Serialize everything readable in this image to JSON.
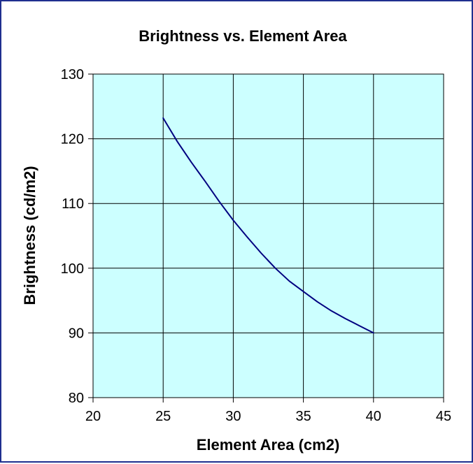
{
  "chart_data": {
    "type": "line",
    "title": "Brightness vs. Element Area",
    "xlabel": "Element Area (cm2)",
    "ylabel": "Brightness (cd/m2)",
    "xlim": [
      20,
      45
    ],
    "ylim": [
      80,
      130
    ],
    "x_ticks": [
      "20",
      "25",
      "30",
      "35",
      "40",
      "45"
    ],
    "y_ticks": [
      "80",
      "90",
      "100",
      "110",
      "120",
      "130"
    ],
    "grid": true,
    "legend": "none",
    "series": [
      {
        "x": [
          25,
          26,
          27,
          28,
          29,
          30,
          31,
          32,
          33,
          34,
          35,
          36,
          37,
          38,
          39,
          40
        ],
        "y": [
          123.2,
          119.6,
          116.4,
          113.4,
          110.3,
          107.4,
          104.8,
          102.3,
          100.0,
          98.0,
          96.4,
          94.8,
          93.4,
          92.2,
          91.1,
          90.0
        ],
        "color": "#000080"
      }
    ],
    "colors": {
      "plot_background": "#ccffff",
      "frame_border": "#1f2f8f",
      "grid": "#000000",
      "line": "#000080"
    }
  }
}
